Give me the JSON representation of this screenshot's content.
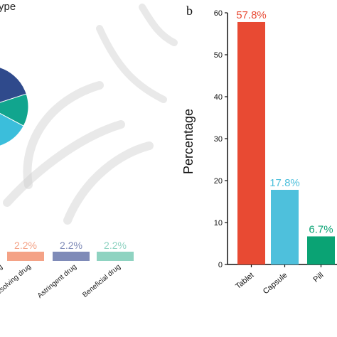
{
  "panel_a": {
    "title_fragment": "ype",
    "pie_colors": [
      "#2f4a8c",
      "#11a58e",
      "#3bbedb"
    ],
    "legend_bars": [
      {
        "label": "rug",
        "value_label": "",
        "color": "#ffffff"
      },
      {
        "label": "Phlegm-resolving drug",
        "value_label": "2.2%",
        "color": "#f4a286"
      },
      {
        "label": "Astringent drug",
        "value_label": "2.2%",
        "color": "#7f8bb8"
      },
      {
        "label": "Beneficial drug",
        "value_label": "2.2%",
        "color": "#8fd3c1"
      }
    ]
  },
  "panel_b_letter": "b",
  "watermark_color": "#cfcfcf",
  "chart_data": {
    "type": "bar",
    "categories": [
      "Tablet",
      "Capsule",
      "Pill"
    ],
    "values": [
      57.8,
      17.8,
      6.7
    ],
    "data_labels": [
      "57.8%",
      "17.8%",
      "6.7%"
    ],
    "colors": [
      "#e84a33",
      "#4ec0dc",
      "#0aa374"
    ],
    "title": "",
    "xlabel": "",
    "ylabel": "Percentage",
    "ylim": [
      0,
      60
    ],
    "yticks": [
      "0",
      "10",
      "20",
      "30",
      "40",
      "50",
      "60"
    ],
    "grid": false
  }
}
